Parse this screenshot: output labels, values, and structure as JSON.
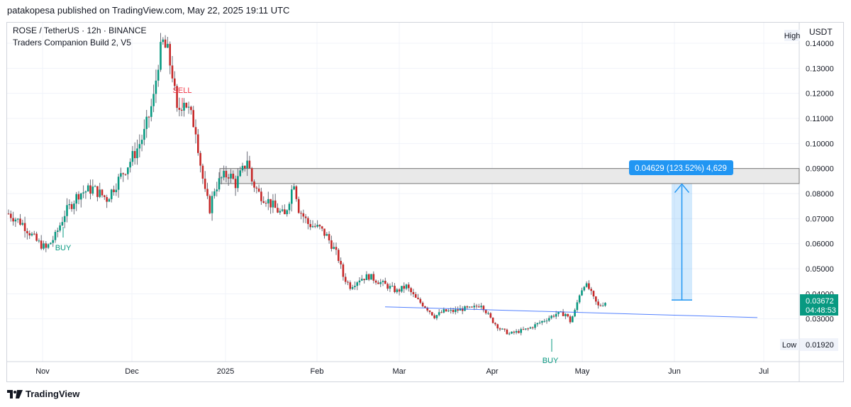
{
  "publisher_line": "patakopesa published on TradingView.com, May 22, 2025 19:11 UTC",
  "legend": {
    "symbol_line": "ROSE / TetherUS · 12h · BINANCE",
    "indicator_line": "Traders Companion Build 2, V5"
  },
  "footer": {
    "brand": "TradingView"
  },
  "chart_data": {
    "type": "candlestick",
    "currency": "USDT",
    "y_ticks": [
      "0.14000",
      "0.13000",
      "0.12000",
      "0.11000",
      "0.10000",
      "0.09000",
      "0.08000",
      "0.07000",
      "0.06000",
      "0.05000",
      "0.04000",
      "0.03000"
    ],
    "y_tick_values": [
      0.14,
      0.13,
      0.12,
      0.11,
      0.1,
      0.09,
      0.08,
      0.07,
      0.06,
      0.05,
      0.04,
      0.03
    ],
    "x_ticks": [
      "Nov",
      "Dec",
      "2025",
      "Feb",
      "Mar",
      "Apr",
      "May",
      "Jun",
      "Jul"
    ],
    "high_label": "High",
    "low_label": "Low",
    "low_value": "0.01920",
    "last_price": "0.03672",
    "countdown": "04:48:53",
    "price_path": [
      [
        0,
        0.072
      ],
      [
        6,
        0.068
      ],
      [
        12,
        0.061
      ],
      [
        16,
        0.058
      ],
      [
        20,
        0.063
      ],
      [
        24,
        0.072
      ],
      [
        30,
        0.08
      ],
      [
        36,
        0.082
      ],
      [
        42,
        0.078
      ],
      [
        48,
        0.087
      ],
      [
        52,
        0.093
      ],
      [
        55,
        0.098
      ],
      [
        58,
        0.104
      ],
      [
        62,
        0.118
      ],
      [
        64,
        0.133
      ],
      [
        66,
        0.14
      ],
      [
        68,
        0.136
      ],
      [
        70,
        0.128
      ],
      [
        72,
        0.112
      ],
      [
        75,
        0.118
      ],
      [
        77,
        0.113
      ],
      [
        80,
        0.106
      ],
      [
        82,
        0.092
      ],
      [
        84,
        0.08
      ],
      [
        86,
        0.074
      ],
      [
        88,
        0.082
      ],
      [
        91,
        0.086
      ],
      [
        94,
        0.088
      ],
      [
        97,
        0.084
      ],
      [
        100,
        0.089
      ],
      [
        102,
        0.094
      ],
      [
        104,
        0.085
      ],
      [
        107,
        0.08
      ],
      [
        110,
        0.078
      ],
      [
        114,
        0.074
      ],
      [
        118,
        0.071
      ],
      [
        120,
        0.078
      ],
      [
        122,
        0.085
      ],
      [
        124,
        0.074
      ],
      [
        128,
        0.068
      ],
      [
        133,
        0.066
      ],
      [
        136,
        0.063
      ],
      [
        139,
        0.058
      ],
      [
        141,
        0.054
      ],
      [
        143,
        0.047
      ],
      [
        146,
        0.043
      ],
      [
        150,
        0.046
      ],
      [
        154,
        0.047
      ],
      [
        158,
        0.045
      ],
      [
        162,
        0.043
      ],
      [
        166,
        0.041
      ],
      [
        170,
        0.043
      ],
      [
        174,
        0.038
      ],
      [
        178,
        0.035
      ],
      [
        182,
        0.031
      ],
      [
        186,
        0.033
      ],
      [
        190,
        0.033
      ],
      [
        194,
        0.034
      ],
      [
        198,
        0.034
      ],
      [
        202,
        0.036
      ],
      [
        206,
        0.03
      ],
      [
        210,
        0.026
      ],
      [
        214,
        0.024
      ],
      [
        218,
        0.025
      ],
      [
        222,
        0.026
      ],
      [
        226,
        0.028
      ],
      [
        230,
        0.03
      ],
      [
        234,
        0.032
      ],
      [
        238,
        0.032
      ],
      [
        240,
        0.029
      ],
      [
        242,
        0.033
      ],
      [
        244,
        0.04
      ],
      [
        246,
        0.044
      ],
      [
        248,
        0.042
      ],
      [
        250,
        0.038
      ],
      [
        252,
        0.035
      ],
      [
        255,
        0.0367
      ]
    ],
    "annotations": [
      {
        "type": "signal",
        "text": "SELL",
        "color": "#f23645"
      },
      {
        "type": "signal",
        "text": "BUY",
        "color": "#089981"
      },
      {
        "type": "signal",
        "text": "BUY",
        "color": "#089981"
      },
      {
        "type": "zone",
        "from": 0.084,
        "to": 0.09
      },
      {
        "type": "trendline",
        "from_price": 0.0348,
        "to_price": 0.0305
      },
      {
        "type": "measure",
        "label": "0.04629 (123.52%) 4,629",
        "from": 0.0375,
        "to": 0.0838
      }
    ]
  }
}
